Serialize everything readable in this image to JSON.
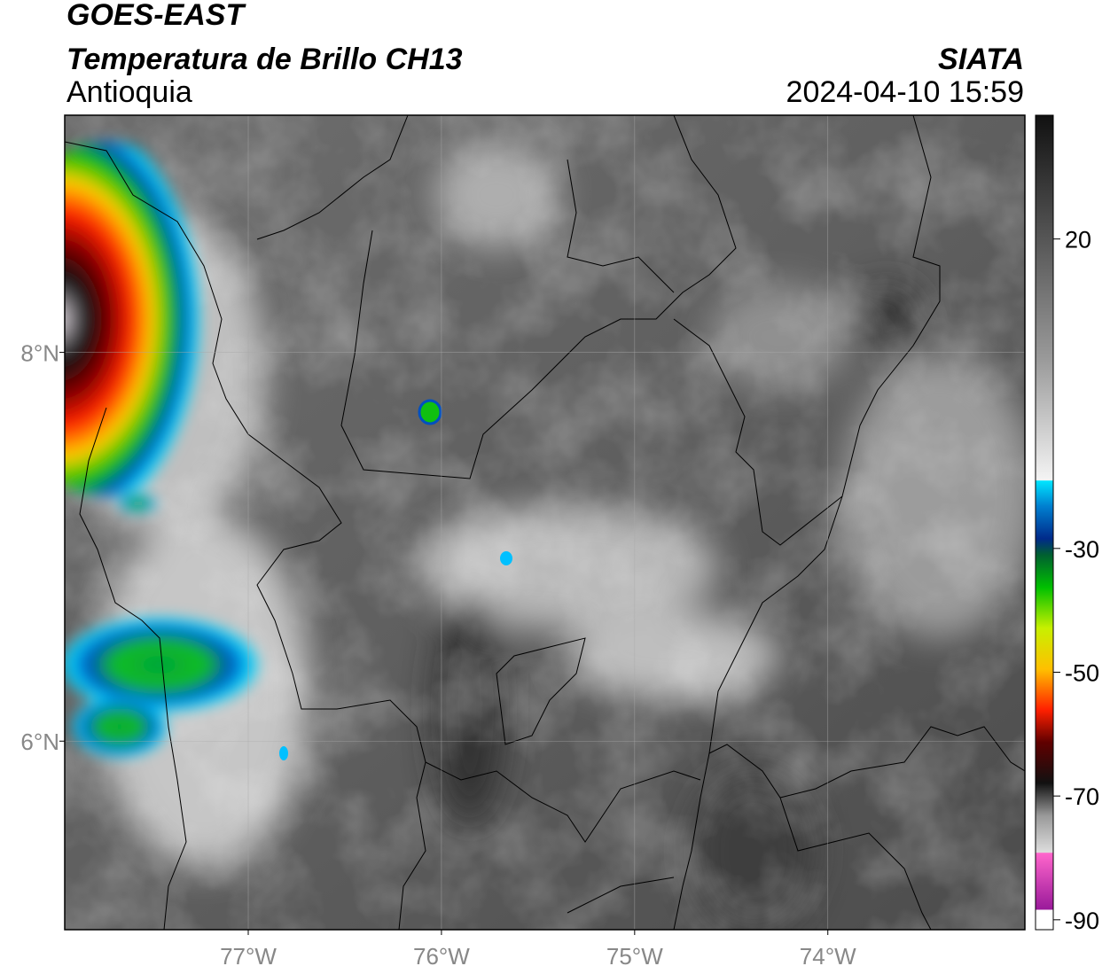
{
  "header": {
    "title": "GOES-EAST",
    "subtitle": "Temperatura de Brillo CH13",
    "region": "Antioquia",
    "source": "SIATA",
    "datetime": "2024-04-10 15:59"
  },
  "map": {
    "xlim": [
      -77.95,
      -72.98
    ],
    "ylim": [
      5.03,
      9.22
    ],
    "xticks": [
      {
        "value": -77,
        "label": "77°W"
      },
      {
        "value": -76,
        "label": "76°W"
      },
      {
        "value": -75,
        "label": "75°W"
      },
      {
        "value": -74,
        "label": "74°W"
      }
    ],
    "yticks": [
      {
        "value": 6,
        "label": "6°N"
      },
      {
        "value": 8,
        "label": "8°N"
      }
    ],
    "grid": true
  },
  "colorbar": {
    "lim": [
      -91.6,
      40
    ],
    "ticks": [
      -90,
      -70,
      -50,
      -30,
      20
    ]
  }
}
